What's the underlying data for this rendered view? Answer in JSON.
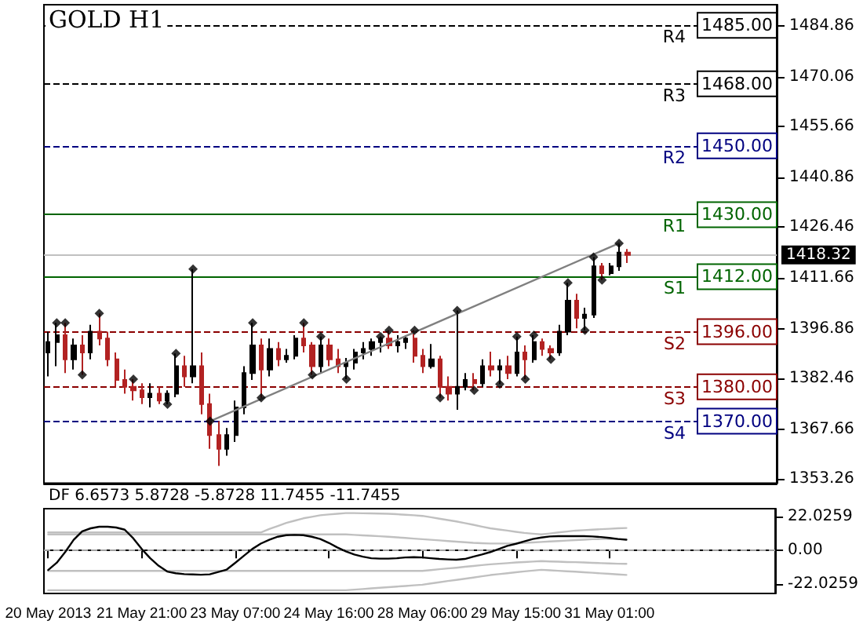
{
  "chart_data": [
    {
      "type": "candlestick",
      "title": "GOLD H1",
      "tick_labels": "y",
      "categories": [
        null,
        null,
        null,
        null,
        null,
        null,
        null,
        null,
        null,
        null,
        null,
        null,
        null,
        null,
        null,
        null,
        null,
        null,
        null,
        null,
        null,
        null,
        null,
        null,
        null,
        null,
        null,
        null,
        null,
        null,
        null,
        null,
        null,
        null,
        null,
        null,
        null,
        null,
        null,
        null,
        null,
        null,
        null,
        null,
        null,
        null,
        null,
        null,
        null,
        null,
        null,
        null,
        null,
        null,
        null,
        null,
        null,
        null,
        null,
        null,
        null,
        null,
        null,
        null,
        null,
        null,
        null,
        null,
        null,
        null,
        null,
        null,
        null,
        null,
        null,
        null,
        null,
        null,
        null,
        null,
        null,
        null,
        null,
        null,
        null,
        null
      ],
      "ylim": [
        1352,
        1491
      ],
      "yticks": [
        1353.26,
        1367.66,
        1382.46,
        1396.86,
        1411.66,
        1426.46,
        1440.86,
        1455.66,
        1470.06,
        1484.86
      ],
      "series": [
        {
          "type": "candlestick",
          "ohlc": [
            [
              1390,
              1396,
              1383,
              1393
            ],
            [
              1393,
              1398.6,
              1386,
              1395
            ],
            [
              1395,
              1398.6,
              1384,
              1388
            ],
            [
              1388,
              1394,
              1385,
              1392
            ],
            [
              1392,
              1395,
              1383.5,
              1390
            ],
            [
              1390,
              1398,
              1388,
              1396
            ],
            [
              1396,
              1401.3,
              1392,
              1394
            ],
            [
              1394,
              1396,
              1386,
              1388
            ],
            [
              1388,
              1390,
              1380,
              1382
            ],
            [
              1382,
              1385,
              1378,
              1380
            ],
            [
              1380,
              1382.2,
              1376,
              1379
            ],
            [
              1379,
              1381,
              1375,
              1377
            ],
            [
              1377,
              1381,
              1374,
              1378
            ],
            [
              1378,
              1380,
              1375,
              1376
            ],
            [
              1376,
              1379,
              1374.9,
              1378
            ],
            [
              1378,
              1389.7,
              1377,
              1386
            ],
            [
              1386,
              1389,
              1380,
              1383
            ],
            [
              1383,
              1414.2,
              1381,
              1386
            ],
            [
              1386,
              1390,
              1372,
              1375
            ],
            [
              1375,
              1378,
              1362,
              1366
            ],
            [
              1366,
              1370,
              1357,
              1362
            ],
            [
              1362,
              1368,
              1360,
              1366
            ],
            [
              1366,
              1376,
              1364,
              1374
            ],
            [
              1374,
              1386,
              1372,
              1384
            ],
            [
              1384,
              1398.6,
              1382,
              1392
            ],
            [
              1392,
              1394,
              1376.8,
              1385
            ],
            [
              1385,
              1394,
              1383,
              1391
            ],
            [
              1391,
              1393,
              1386,
              1388
            ],
            [
              1388,
              1391,
              1387,
              1389
            ],
            [
              1389,
              1395,
              1388,
              1394
            ],
            [
              1394,
              1398.6,
              1390,
              1392
            ],
            [
              1392,
              1393,
              1383.5,
              1386
            ],
            [
              1386,
              1394.6,
              1384,
              1392
            ],
            [
              1392,
              1394,
              1386,
              1388
            ],
            [
              1388,
              1391,
              1384,
              1386
            ],
            [
              1386,
              1388.4,
              1382.2,
              1387
            ],
            [
              1387,
              1391,
              1385,
              1390
            ],
            [
              1390,
              1393,
              1388,
              1391
            ],
            [
              1391,
              1394,
              1389,
              1393
            ],
            [
              1393,
              1394.6,
              1390,
              1394
            ],
            [
              1394,
              1396.4,
              1391,
              1392
            ],
            [
              1392,
              1395,
              1390,
              1393
            ],
            [
              1393,
              1395,
              1391,
              1394
            ],
            [
              1394,
              1396.4,
              1387,
              1389
            ],
            [
              1389,
              1391,
              1384,
              1386
            ],
            [
              1386,
              1392.4,
              1385.3,
              1388
            ],
            [
              1388,
              1389,
              1376.8,
              1380
            ],
            [
              1380,
              1383,
              1376,
              1378
            ],
            [
              1378,
              1402.2,
              1373.3,
              1380
            ],
            [
              1380,
              1384,
              1379,
              1382
            ],
            [
              1382,
              1384,
              1379,
              1381
            ],
            [
              1381,
              1388,
              1380,
              1386
            ],
            [
              1386,
              1390.2,
              1383,
              1385
            ],
            [
              1385,
              1388,
              1380.8,
              1386
            ],
            [
              1386,
              1389,
              1382.2,
              1384
            ],
            [
              1384,
              1394.6,
              1383,
              1390
            ],
            [
              1390,
              1392,
              1382.2,
              1388
            ],
            [
              1388,
              1395,
              1387,
              1393
            ],
            [
              1393,
              1394,
              1389,
              1391
            ],
            [
              1391,
              1392,
              1388,
              1390
            ],
            [
              1390,
              1398,
              1389,
              1396
            ],
            [
              1396,
              1410.2,
              1395,
              1405
            ],
            [
              1405,
              1407,
              1397,
              1400
            ],
            [
              1400,
              1403,
              1396.4,
              1401
            ],
            [
              1401,
              1417.7,
              1400,
              1415
            ],
            [
              1415,
              1416,
              1411,
              1413
            ],
            [
              1413,
              1416,
              1412.4,
              1415
            ],
            [
              1415,
              1421.7,
              1413.7,
              1419
            ],
            [
              1419,
              1420,
              1416,
              1418.32
            ],
            null,
            null,
            null,
            null,
            null,
            null,
            null,
            null,
            null,
            null,
            null,
            null,
            null,
            null,
            null,
            null,
            null
          ],
          "colors": [
            "#000000",
            "#000000",
            "#b22222",
            "#000000",
            "#b22222",
            "#000000",
            "#b22222",
            "#b22222",
            "#b22222",
            "#b22222",
            "#b22222",
            "#b22222",
            "#000000",
            "#b22222",
            "#000000",
            "#000000",
            "#b22222",
            "#000000",
            "#b22222",
            "#b22222",
            "#b22222",
            "#000000",
            "#000000",
            "#000000",
            "#000000",
            "#b22222",
            "#000000",
            "#b22222",
            "#000000",
            "#000000",
            "#b22222",
            "#b22222",
            "#000000",
            "#b22222",
            "#b22222",
            "#000000",
            "#000000",
            "#000000",
            "#000000",
            "#000000",
            "#b22222",
            "#000000",
            "#000000",
            "#b22222",
            "#b22222",
            "#000000",
            "#b22222",
            "#b22222",
            "#000000",
            "#000000",
            "#b22222",
            "#000000",
            "#b22222",
            "#000000",
            "#b22222",
            "#000000",
            "#b22222",
            "#000000",
            "#b22222",
            "#b22222",
            "#000000",
            "#000000",
            "#b22222",
            "#000000",
            "#000000",
            "#b22222",
            "#000000",
            "#000000",
            "#b22222",
            null,
            null,
            null,
            null,
            null,
            null,
            null,
            null,
            null,
            null,
            null,
            null,
            null,
            null,
            null,
            null,
            null
          ]
        },
        {
          "type": "line",
          "color": "#808080",
          "values": [
            null,
            null,
            null,
            null,
            null,
            null,
            null,
            null,
            null,
            null,
            null,
            null,
            null,
            null,
            null,
            null,
            null,
            null,
            null,
            1370,
            null,
            null,
            null,
            null,
            null,
            null,
            null,
            null,
            null,
            null,
            null,
            null,
            null,
            null,
            null,
            null,
            null,
            null,
            null,
            null,
            null,
            null,
            null,
            null,
            null,
            null,
            null,
            null,
            null,
            null,
            null,
            null,
            null,
            null,
            null,
            null,
            null,
            null,
            null,
            null,
            null,
            null,
            null,
            null,
            null,
            null,
            null,
            1421.7,
            null,
            null,
            null,
            null,
            null,
            null,
            null,
            null,
            null,
            null,
            null,
            null,
            null,
            null,
            null,
            null,
            null,
            null
          ]
        },
        {
          "type": "scatter",
          "color": "#000000",
          "marker": "diamond",
          "values": [
            null,
            1398.6,
            1398.6,
            null,
            1383.5,
            null,
            1401.3,
            null,
            null,
            null,
            1382.2,
            null,
            null,
            null,
            1374.9,
            1389.7,
            null,
            1414.2,
            null,
            1370,
            null,
            null,
            null,
            null,
            1398.6,
            1376.8,
            null,
            null,
            null,
            null,
            1398.6,
            1383.5,
            1394.6,
            null,
            null,
            1382.2,
            null,
            null,
            null,
            1394.6,
            1396.4,
            null,
            null,
            1396.4,
            null,
            null,
            1376.8,
            null,
            1402.2,
            null,
            1379,
            null,
            null,
            1380.8,
            null,
            1394.6,
            1382.2,
            1395,
            null,
            1388,
            null,
            1410.2,
            null,
            1396.4,
            1417.7,
            1411,
            null,
            1421.7,
            null,
            null,
            null,
            null,
            null,
            null,
            null,
            null,
            null,
            null,
            null,
            null,
            null,
            null,
            null,
            null,
            null,
            null
          ]
        }
      ],
      "ref_lines": [
        {
          "axis": "y",
          "value": 1485,
          "label": "R4",
          "color": "#000000",
          "line_style": "dashed"
        },
        {
          "axis": "y",
          "value": 1468,
          "label": "R3",
          "color": "#000000",
          "line_style": "dashed"
        },
        {
          "axis": "y",
          "value": 1450,
          "label": "R2",
          "color": "#000080",
          "line_style": "dashed"
        },
        {
          "axis": "y",
          "value": 1430,
          "label": "R1",
          "color": "#006400",
          "line_style": "solid"
        },
        {
          "axis": "y",
          "value": 1412,
          "label": "S1",
          "color": "#006400",
          "line_style": "solid"
        },
        {
          "axis": "y",
          "value": 1396,
          "label": "S2",
          "color": "#8b0000",
          "line_style": "dashed"
        },
        {
          "axis": "y",
          "value": 1380,
          "label": "S3",
          "color": "#8b0000",
          "line_style": "dashed"
        },
        {
          "axis": "y",
          "value": 1370,
          "label": "S4",
          "color": "#000080",
          "line_style": "dashed"
        },
        {
          "axis": "y",
          "value": 1418.32,
          "label": "1418.32",
          "color": "#c0c0c0",
          "line_style": "solid"
        }
      ],
      "annotations": [
        {
          "text": "1485.00",
          "y": 1485
        },
        {
          "text": "1468.00",
          "y": 1468
        },
        {
          "text": "1450.00",
          "y": 1450
        },
        {
          "text": "1430.00",
          "y": 1430
        },
        {
          "text": "1412.00",
          "y": 1412
        },
        {
          "text": "1396.00",
          "y": 1396
        },
        {
          "text": "1380.00",
          "y": 1380
        },
        {
          "text": "1370.00",
          "y": 1370
        }
      ]
    },
    {
      "type": "line",
      "title": "DF 6.6573 5.8728 -5.8728 11.7455 -11.7455",
      "categories": [
        "20 May 2013",
        null,
        null,
        null,
        null,
        null,
        null,
        null,
        null,
        null,
        null,
        "21 May 21:00",
        null,
        null,
        null,
        null,
        null,
        null,
        null,
        null,
        null,
        null,
        "23 May 07:00",
        null,
        null,
        null,
        null,
        null,
        null,
        null,
        null,
        null,
        null,
        "24 May 16:00",
        null,
        null,
        null,
        null,
        null,
        null,
        null,
        null,
        null,
        null,
        "28 May 06:00",
        null,
        null,
        null,
        null,
        null,
        null,
        null,
        null,
        null,
        null,
        "29 May 15:00",
        null,
        null,
        null,
        null,
        null,
        null,
        null,
        null,
        null,
        null,
        "31 May 01:00",
        null,
        null,
        null,
        null,
        null,
        null,
        null,
        null,
        null,
        null,
        null,
        null,
        null,
        null,
        null,
        null,
        null,
        null,
        null
      ],
      "ylim": [
        -28,
        27.3
      ],
      "yticks": [
        -22.0259,
        {
          "value": 0,
          "label": "0.00"
        },
        22.0259
      ],
      "series": [
        {
          "color": "#c0c0c0",
          "values": [
            11.8,
            11.8,
            11.8,
            11.8,
            11.8,
            11.8,
            11.8,
            11.8,
            11.8,
            11.8,
            11.8,
            11.8,
            11.8,
            11.8,
            11.8,
            11.8,
            11.8,
            11.8,
            11.8,
            11.8,
            11.8,
            11.8,
            11.8,
            11.8,
            11.8,
            11.8,
            14,
            16,
            18,
            19.5,
            21,
            22,
            23,
            23.5,
            24,
            24.4,
            24.4,
            24.3,
            24.2,
            24.1,
            24,
            23.7,
            23.3,
            23,
            22.6,
            21.7,
            20.8,
            19.9,
            19,
            17.9,
            16.8,
            15.6,
            14.5,
            13.7,
            13,
            12.2,
            11.5,
            11,
            10.5,
            11.1,
            11.8,
            12.4,
            13,
            13.3,
            13.6,
            13.9,
            14.2,
            14.5,
            14.7,
            null,
            null,
            null,
            null,
            null,
            null,
            null,
            null,
            null,
            null,
            null,
            null,
            null,
            null,
            null,
            null,
            null
          ]
        },
        {
          "color": "#c0c0c0",
          "values": [
            10.5,
            10.5,
            10.5,
            10.5,
            10.5,
            10.5,
            10.5,
            10.5,
            10.5,
            10.5,
            10.5,
            10.5,
            10.5,
            10.5,
            10.5,
            10.5,
            10.5,
            10.5,
            10.5,
            10.5,
            10.5,
            10.5,
            10.5,
            10.5,
            10.5,
            10.5,
            10.5,
            10.5,
            10.5,
            10.5,
            10.5,
            10.5,
            10.5,
            10.5,
            10.5,
            10.5,
            10.2,
            9.9,
            9.6,
            9.3,
            9,
            8.6,
            8.2,
            7.8,
            7.4,
            7,
            6.6,
            6.2,
            5.8,
            5.4,
            5,
            4.8,
            4.6,
            4.6,
            4.6,
            4.6,
            5,
            5.3,
            5.6,
            5.9,
            6.2,
            6.5,
            6.8,
            7.1,
            7.4,
            7.5,
            7.5,
            7.5,
            7.5,
            null,
            null,
            null,
            null,
            null,
            null,
            null,
            null,
            null,
            null,
            null,
            null,
            null,
            null,
            null,
            null,
            null
          ]
        },
        {
          "color": "#c0c0c0",
          "values": [
            -13.3,
            -13.3,
            -13.3,
            -13.3,
            -13.3,
            -13.3,
            -13.3,
            -13.3,
            -13.3,
            -13.3,
            -13.3,
            -13.3,
            -13.3,
            -13.3,
            -13.3,
            -13.3,
            -13.3,
            -13.3,
            -13.3,
            -13.3,
            -13.3,
            -13.3,
            -13.3,
            -13.3,
            -13.3,
            -13.3,
            -13.3,
            -13.3,
            -13.3,
            -13.3,
            -13.3,
            -13.3,
            -13.3,
            -13.3,
            -13.3,
            -13.3,
            -13.3,
            -13.3,
            -13.3,
            -13.3,
            -13.3,
            -13.3,
            -13.3,
            -13.3,
            -13.3,
            -12.8,
            -12.2,
            -11.7,
            -11.2,
            -10.6,
            -10.1,
            -9.5,
            -9,
            -8.6,
            -8.2,
            -7.8,
            -7.5,
            -7.2,
            -6.9,
            -7.1,
            -7.3,
            -7.5,
            -7.6,
            -7.8,
            -8,
            -8.2,
            -8.4,
            -8.6,
            -8.7,
            null,
            null,
            null,
            null,
            null,
            null,
            null,
            null,
            null,
            null,
            null,
            null,
            null,
            null,
            null,
            null,
            null
          ]
        },
        {
          "color": "#c0c0c0",
          "values": [
            -25.9,
            -25.9,
            -25.9,
            -25.9,
            -25.9,
            -25.9,
            -25.9,
            -25.9,
            -25.9,
            -25.9,
            -25.9,
            -25.9,
            -25.9,
            -25.9,
            -25.9,
            -25.9,
            -25.9,
            -25.9,
            -25.9,
            -25.9,
            -25.9,
            -25.9,
            -25.9,
            -25.9,
            -25.9,
            -25.9,
            -25.9,
            -25.9,
            -25.9,
            -25.9,
            -25.9,
            -25.9,
            -25.9,
            -25.9,
            -25.9,
            -25.9,
            -25.5,
            -25.1,
            -24.7,
            -24.3,
            -23.9,
            -23.5,
            -23.1,
            -22.7,
            -22.3,
            -21.5,
            -20.7,
            -19.9,
            -19.2,
            -18.4,
            -17.6,
            -16.8,
            -16,
            -15.4,
            -14.8,
            -14.2,
            -13.6,
            -13.1,
            -12.6,
            -12.9,
            -13.2,
            -13.5,
            -13.8,
            -14.2,
            -14.5,
            -14.9,
            -15.2,
            -15.6,
            -15.9,
            null,
            null,
            null,
            null,
            null,
            null,
            null,
            null,
            null,
            null,
            null,
            null,
            null,
            null,
            null,
            null,
            null
          ]
        },
        {
          "color": "#000000",
          "values": [
            -12.7,
            -8,
            -1,
            7,
            12.5,
            14.5,
            15.5,
            15.5,
            15,
            13.6,
            8,
            1,
            -5,
            -10,
            -13.7,
            -14.8,
            -15.4,
            -15.6,
            -15.8,
            -15.5,
            -14,
            -12.4,
            -8,
            -3.5,
            1,
            4.5,
            7,
            9,
            10,
            10.2,
            10,
            9,
            7.5,
            5,
            2,
            -0.5,
            -2.6,
            -4,
            -5,
            -5.3,
            -5.3,
            -5,
            -4.5,
            -4.3,
            -4.5,
            -5,
            -5.5,
            -5.8,
            -6,
            -5.5,
            -4,
            -2.6,
            -1,
            1,
            3,
            4.4,
            6,
            7.5,
            8.5,
            9.2,
            9.4,
            9.4,
            9.4,
            9.4,
            9.2,
            8.8,
            8.2,
            7.5,
            7,
            null,
            null,
            null,
            null,
            null,
            null,
            null,
            null,
            null,
            null,
            null,
            null,
            null,
            null,
            null,
            null,
            null
          ]
        }
      ],
      "ref_lines": [
        {
          "axis": "y",
          "value": 0,
          "color": "#a0a0a0",
          "line_style": "dashed"
        }
      ]
    }
  ]
}
